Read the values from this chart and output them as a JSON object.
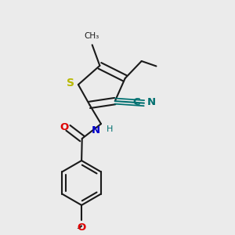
{
  "bg_color": "#ebebeb",
  "bond_color": "#1a1a1a",
  "sulfur_color": "#b8b800",
  "oxygen_color": "#dd0000",
  "nitrogen_color": "#0000cc",
  "cn_color": "#007070",
  "line_width": 1.5,
  "fig_size": [
    3.0,
    3.0
  ],
  "dpi": 100,
  "xlim": [
    0.1,
    0.9
  ],
  "ylim": [
    0.05,
    0.95
  ]
}
